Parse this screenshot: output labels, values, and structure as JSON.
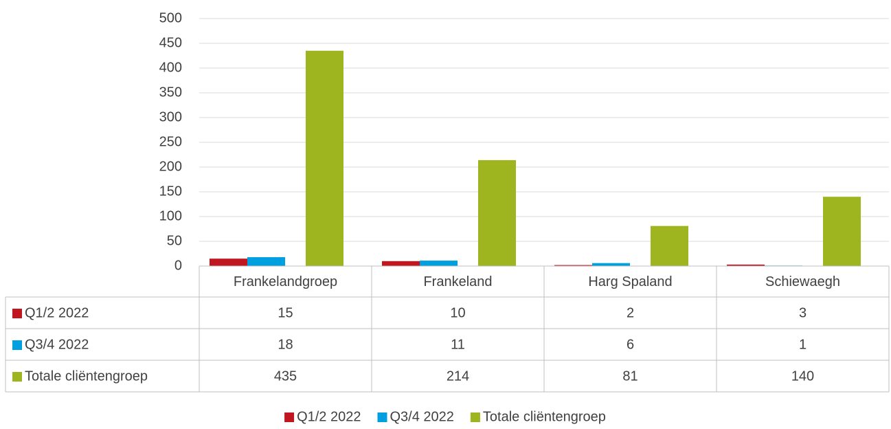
{
  "chart_data": {
    "type": "bar",
    "categories": [
      "Frankelandgroep",
      "Frankeland",
      "Harg Spaland",
      "Schiewaegh"
    ],
    "series": [
      {
        "name": "Q1/2 2022",
        "color": "#c0161f",
        "values": [
          15,
          10,
          2,
          3
        ]
      },
      {
        "name": "Q3/4 2022",
        "color": "#00a0e0",
        "values": [
          18,
          11,
          6,
          1
        ]
      },
      {
        "name": "Totale cliëntengroep",
        "color": "#9fb51f",
        "values": [
          435,
          214,
          81,
          140
        ]
      }
    ],
    "ylim": [
      0,
      500
    ],
    "yticks": [
      0,
      50,
      100,
      150,
      200,
      250,
      300,
      350,
      400,
      450,
      500
    ],
    "grid": true,
    "legend": "bottom"
  }
}
